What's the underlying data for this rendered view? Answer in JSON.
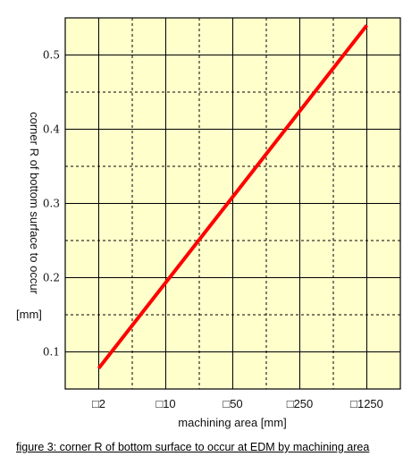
{
  "chart_data": {
    "type": "line",
    "x_scale": "log",
    "x_tick_labels": [
      "□2",
      "□10",
      "□50",
      "□250",
      "□1250"
    ],
    "x_tick_values": [
      4,
      100,
      2500,
      62500,
      1562500
    ],
    "xlabel": "machining area  [mm]",
    "ylabel": "corner R of bottom surface to occur",
    "yunit": "[mm]",
    "y_ticks": [
      0.1,
      0.2,
      0.3,
      0.4,
      0.5
    ],
    "y_tick_labels": [
      "0.1",
      "0.2",
      "0.3",
      "0.4",
      "0.5"
    ],
    "ylim": [
      0.05,
      0.55
    ],
    "grid": true,
    "series": [
      {
        "color": "#ff0000",
        "x": [
          4,
          1562500
        ],
        "y": [
          0.078,
          0.54
        ]
      }
    ]
  },
  "caption": "figure 3: corner R of bottom surface to occur at EDM by machining area",
  "colors": {
    "plot_background": "#ffffcc",
    "grid_solid": "#000000",
    "grid_dashed": "#000000",
    "series_line": "#ff0000"
  }
}
